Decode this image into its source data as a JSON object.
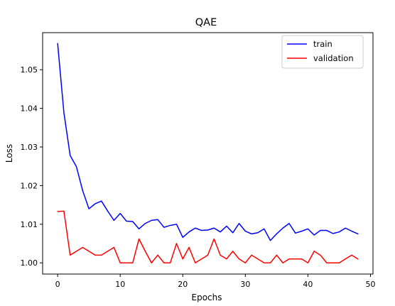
{
  "chart_data": {
    "type": "line",
    "title": "QAE",
    "xlabel": "Epochs",
    "ylabel": "Loss",
    "xlim": [
      -2.4,
      50.4
    ],
    "ylim": [
      0.9971,
      1.0596
    ],
    "xticks": [
      0,
      10,
      20,
      30,
      40,
      50
    ],
    "xtick_labels": [
      "0",
      "10",
      "20",
      "30",
      "40",
      "50"
    ],
    "yticks": [
      1.0,
      1.01,
      1.02,
      1.03,
      1.04,
      1.05
    ],
    "ytick_labels": [
      "1.00",
      "1.01",
      "1.02",
      "1.03",
      "1.04",
      "1.05"
    ],
    "grid": false,
    "legend_position": "top-right",
    "x": [
      0,
      1,
      2,
      3,
      4,
      5,
      6,
      7,
      8,
      9,
      10,
      11,
      12,
      13,
      14,
      15,
      16,
      17,
      18,
      19,
      20,
      21,
      22,
      23,
      24,
      25,
      26,
      27,
      28,
      29,
      30,
      31,
      32,
      33,
      34,
      35,
      36,
      37,
      38,
      39,
      40,
      41,
      42,
      43,
      44,
      45,
      46,
      47,
      48
    ],
    "series": [
      {
        "name": "train",
        "color": "#0000ff",
        "values": [
          1.0568,
          1.0389,
          1.0278,
          1.0249,
          1.0187,
          1.014,
          1.0153,
          1.016,
          1.0134,
          1.011,
          1.0128,
          1.0108,
          1.0107,
          1.0088,
          1.0102,
          1.011,
          1.0112,
          1.0092,
          1.0097,
          1.01,
          1.0066,
          1.008,
          1.009,
          1.0084,
          1.0085,
          1.009,
          1.008,
          1.0095,
          1.0078,
          1.0102,
          1.0082,
          1.0075,
          1.0078,
          1.0088,
          1.0058,
          1.0075,
          1.009,
          1.0102,
          1.0077,
          1.0082,
          1.0088,
          1.0072,
          1.0084,
          1.0084,
          1.0076,
          1.008,
          1.009,
          1.0082,
          1.0075
        ]
      },
      {
        "name": "validation",
        "color": "#ff0000",
        "values": [
          1.0133,
          1.0134,
          1.002,
          1.003,
          1.004,
          1.003,
          1.002,
          1.002,
          1.003,
          1.004,
          1.0,
          1.0,
          1.0,
          1.0062,
          1.003,
          1.0,
          1.002,
          1.0,
          1.0,
          1.005,
          1.001,
          1.004,
          1.0,
          1.001,
          1.002,
          1.0062,
          1.002,
          1.001,
          1.003,
          1.001,
          1.0,
          1.002,
          1.001,
          1.0,
          1.0,
          1.002,
          1.0,
          1.001,
          1.001,
          1.001,
          1.0,
          1.003,
          1.002,
          1.0,
          1.0,
          1.0,
          1.001,
          1.002,
          1.001
        ]
      }
    ]
  }
}
